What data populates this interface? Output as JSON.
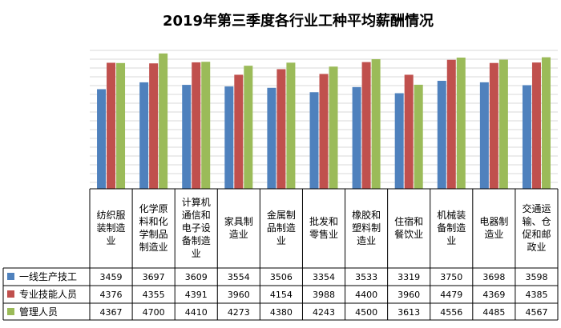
{
  "chart_data": {
    "type": "bar",
    "title": "2019年第三季度各行业工种平均薪酬情况",
    "categories": [
      [
        "纺织服",
        "装制造",
        "业"
      ],
      [
        "化学原",
        "料和化",
        "学制品",
        "制造业"
      ],
      [
        "计算机",
        "通信和",
        "电子设",
        "备制造",
        "业"
      ],
      [
        "家具制",
        "造业"
      ],
      [
        "金属制",
        "品制造",
        "业"
      ],
      [
        "批发和",
        "零售业"
      ],
      [
        "橡胶和",
        "塑料制",
        "造业"
      ],
      [
        "住宿和",
        "餐饮业"
      ],
      [
        "机械装",
        "备制造",
        "业"
      ],
      [
        "电器制",
        "造业"
      ],
      [
        "交通运",
        "输、仓",
        "促和邮",
        "政业"
      ]
    ],
    "series": [
      {
        "name": "一线生产技工",
        "color": "#4f81bd",
        "values": [
          3459,
          3697,
          3609,
          3554,
          3506,
          3354,
          3533,
          3319,
          3750,
          3698,
          3598
        ]
      },
      {
        "name": "专业技能人员",
        "color": "#c0504d",
        "values": [
          4376,
          4355,
          4391,
          3960,
          4154,
          3988,
          4400,
          3960,
          4479,
          4369,
          4385
        ]
      },
      {
        "name": "管理人员",
        "color": "#9bbb59",
        "values": [
          4367,
          4700,
          4410,
          4273,
          4380,
          4243,
          4500,
          3613,
          4556,
          4485,
          4567
        ]
      }
    ],
    "grid": true,
    "legend": "data-table-left"
  }
}
